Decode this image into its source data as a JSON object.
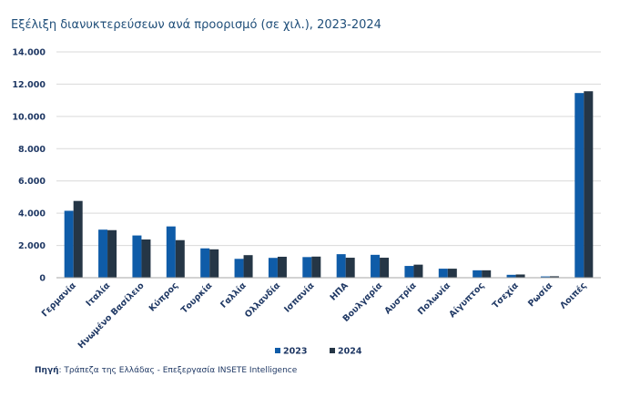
{
  "title": "Εξέλιξη διανυκτερεύσεων ανά προορισμό (σε χιλ.), 2023-2024",
  "source": {
    "label": "Πηγή",
    "text": ": Τράπεζα της Ελλάδας - Επεξεργασία INSETE Intelligence"
  },
  "chart_data": {
    "type": "bar",
    "title": "Εξέλιξη διανυκτερεύσεων ανά προορισμό (σε χιλ.), 2023-2024",
    "xlabel": "",
    "ylabel": "",
    "ylim": [
      0,
      14000
    ],
    "yticks": [
      0,
      2000,
      4000,
      6000,
      8000,
      10000,
      12000,
      14000
    ],
    "ytick_labels": [
      "0",
      "2.000",
      "4.000",
      "6.000",
      "8.000",
      "10.000",
      "12.000",
      "14.000"
    ],
    "grid": true,
    "legend_position": "bottom",
    "categories": [
      "Γερμανία",
      "Ιταλία",
      "Ηνωμένο Βασίλειο",
      "Κύπρος",
      "Τουρκία",
      "Γαλλία",
      "Ολλανδία",
      "Ισπανία",
      "ΗΠΑ",
      "Βουλγαρία",
      "Αυστρία",
      "Πολωνία",
      "Αίγυπτος",
      "Τσεχία",
      "Ρωσία",
      "Λοιπές"
    ],
    "series": [
      {
        "name": "2023",
        "color": "#0f5ca8",
        "values": [
          4150,
          2980,
          2620,
          3180,
          1820,
          1170,
          1230,
          1280,
          1460,
          1420,
          730,
          560,
          460,
          180,
          80,
          11450
        ]
      },
      {
        "name": "2024",
        "color": "#253646",
        "values": [
          4760,
          2950,
          2370,
          2330,
          1760,
          1400,
          1300,
          1310,
          1240,
          1240,
          810,
          560,
          460,
          200,
          90,
          11560
        ]
      }
    ]
  }
}
